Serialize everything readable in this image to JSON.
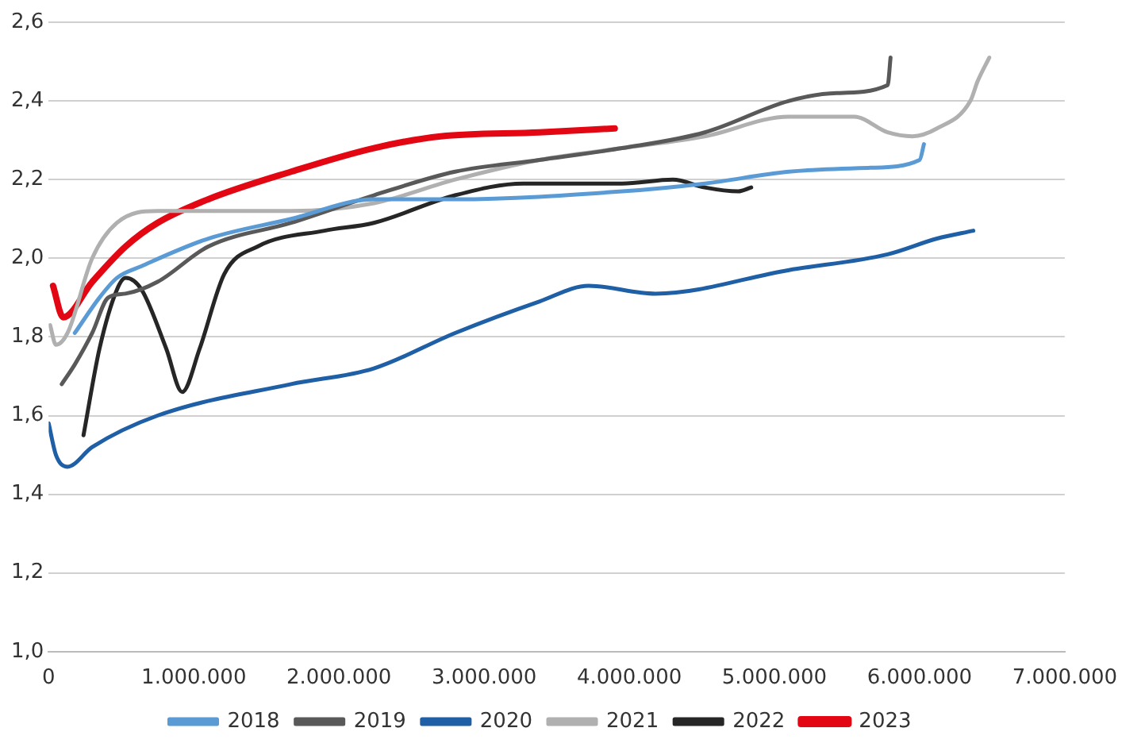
{
  "chart_data": {
    "type": "line",
    "xlim": [
      0,
      7000000
    ],
    "xticks": [
      {
        "value": 0,
        "label": "0"
      },
      {
        "value": 1000000,
        "label": "1.000.000"
      },
      {
        "value": 2000000,
        "label": "2.000.000"
      },
      {
        "value": 3000000,
        "label": "3.000.000"
      },
      {
        "value": 4000000,
        "label": "4.000.000"
      },
      {
        "value": 5000000,
        "label": "5.000.000"
      },
      {
        "value": 6000000,
        "label": "6.000.000"
      },
      {
        "value": 7000000,
        "label": "7.000.000"
      }
    ],
    "ylim": [
      1.0,
      2.6
    ],
    "yticks": [
      {
        "value": 1.0,
        "label": "1,0"
      },
      {
        "value": 1.2,
        "label": "1,2"
      },
      {
        "value": 1.4,
        "label": "1,4"
      },
      {
        "value": 1.6,
        "label": "1,6"
      },
      {
        "value": 1.8,
        "label": "1,8"
      },
      {
        "value": 2.0,
        "label": "2,0"
      },
      {
        "value": 2.2,
        "label": "2,2"
      },
      {
        "value": 2.4,
        "label": "2,4"
      },
      {
        "value": 2.6,
        "label": "2,6"
      }
    ],
    "grid": "y",
    "legend": "bottom",
    "marker": "none",
    "line_style": "solid",
    "series": [
      {
        "name": "2018",
        "color": "#5b9bd5",
        "x": [
          180000,
          350000,
          470000,
          640000,
          1100000,
          1670000,
          2240000,
          2800000,
          3950000,
          4520000,
          5100000,
          5660000,
          6000000,
          6030000
        ],
        "values": [
          1.81,
          1.9,
          1.95,
          1.98,
          2.05,
          2.1,
          2.15,
          2.15,
          2.17,
          2.19,
          2.22,
          2.23,
          2.25,
          2.29
        ]
      },
      {
        "name": "2019",
        "color": "#595959",
        "x": [
          90000,
          180000,
          300000,
          410000,
          530000,
          750000,
          1100000,
          1670000,
          2240000,
          2800000,
          3380000,
          3950000,
          4520000,
          5100000,
          5430000,
          5780000,
          5800000
        ],
        "values": [
          1.68,
          1.73,
          1.81,
          1.9,
          1.91,
          1.94,
          2.03,
          2.09,
          2.16,
          2.22,
          2.25,
          2.28,
          2.32,
          2.4,
          2.42,
          2.44,
          2.51
        ]
      },
      {
        "name": "2020",
        "color": "#1f5fa6",
        "x": [
          0,
          50000,
          130000,
          300000,
          750000,
          1670000,
          2240000,
          2800000,
          3380000,
          3720000,
          4180000,
          5100000,
          5780000,
          6120000,
          6370000
        ],
        "values": [
          1.58,
          1.5,
          1.47,
          1.52,
          1.6,
          1.68,
          1.72,
          1.81,
          1.89,
          1.93,
          1.91,
          1.97,
          2.01,
          2.05,
          2.07
        ]
      },
      {
        "name": "2021",
        "color": "#b0b0b0",
        "x": [
          10000,
          50000,
          130000,
          300000,
          470000,
          750000,
          1670000,
          2240000,
          2800000,
          3380000,
          3950000,
          4520000,
          5100000,
          5550000,
          5780000,
          5950000,
          6120000,
          6350000,
          6400000,
          6480000
        ],
        "values": [
          1.83,
          1.78,
          1.81,
          2.0,
          2.09,
          2.12,
          2.12,
          2.14,
          2.2,
          2.25,
          2.28,
          2.31,
          2.36,
          2.36,
          2.32,
          2.31,
          2.33,
          2.4,
          2.45,
          2.51
        ]
      },
      {
        "name": "2022",
        "color": "#262626",
        "x": [
          240000,
          350000,
          470000,
          530000,
          640000,
          810000,
          920000,
          1040000,
          1210000,
          1440000,
          1900000,
          2240000,
          2800000,
          3270000,
          3950000,
          4300000,
          4520000,
          4750000,
          4840000
        ],
        "values": [
          1.55,
          1.77,
          1.92,
          1.95,
          1.92,
          1.77,
          1.66,
          1.77,
          1.96,
          2.03,
          2.07,
          2.09,
          2.16,
          2.19,
          2.19,
          2.2,
          2.18,
          2.17,
          2.18
        ]
      },
      {
        "name": "2023",
        "color": "#e30613",
        "x": [
          30000,
          100000,
          300000,
          530000,
          750000,
          1100000,
          1670000,
          2240000,
          2700000,
          3380000,
          3900000
        ],
        "values": [
          1.93,
          1.85,
          1.94,
          2.03,
          2.09,
          2.15,
          2.22,
          2.28,
          2.31,
          2.32,
          2.33
        ]
      }
    ]
  }
}
